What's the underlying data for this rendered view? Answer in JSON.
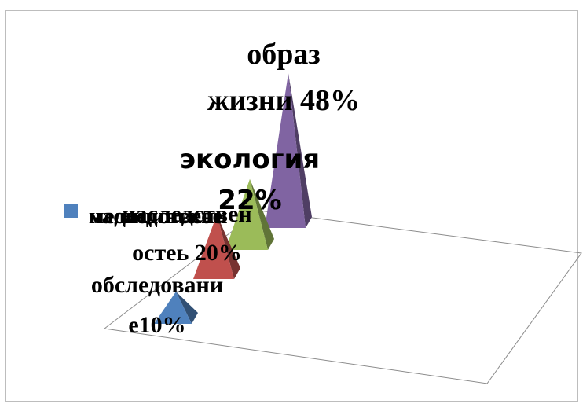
{
  "chart_data": {
    "type": "3d-pyramid",
    "categories": [
      "медицинское обследование",
      "наследственность",
      "экология",
      "образ жизни"
    ],
    "values": [
      10,
      20,
      22,
      48
    ],
    "data_labels": [
      {
        "lines": [
          "обследовани",
          "е10%"
        ]
      },
      {
        "lines": [
          "наследствен",
          "остеь 20%"
        ]
      },
      {
        "lines": [
          "экология",
          "22%"
        ]
      },
      {
        "lines": [
          "образ",
          "жизни 48%"
        ]
      }
    ],
    "legend": {
      "entries": [
        "медицинское",
        "наследственн"
      ],
      "placement": "left"
    },
    "colors": [
      "#4f81bd",
      "#c0504d",
      "#9bbb59",
      "#8064a2"
    ],
    "ylim": [
      0,
      50
    ],
    "grid": false
  }
}
